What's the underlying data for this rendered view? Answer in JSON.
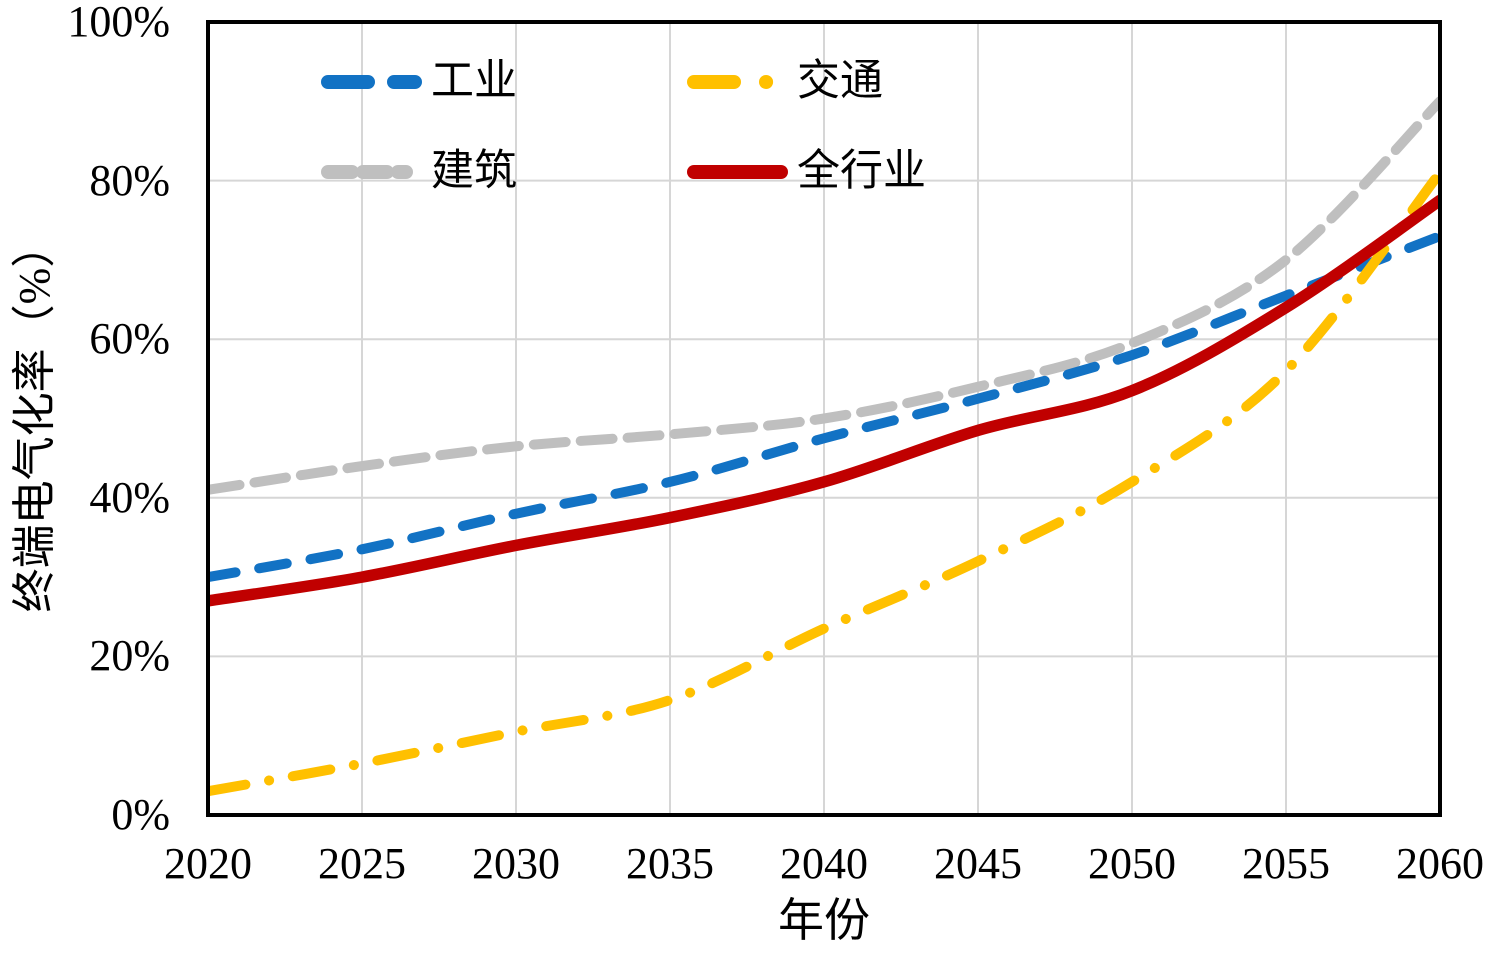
{
  "chart_data": {
    "type": "line",
    "title": "",
    "xlabel": "年份",
    "ylabel": "终端电气化率（%）",
    "x": [
      2020,
      2025,
      2030,
      2035,
      2040,
      2045,
      2050,
      2055,
      2060
    ],
    "x_tick_labels": [
      "2020",
      "2025",
      "2030",
      "2035",
      "2040",
      "2045",
      "2050",
      "2055",
      "2060"
    ],
    "y_tick_labels": [
      "0%",
      "20%",
      "40%",
      "60%",
      "80%",
      "100%"
    ],
    "ylim": [
      0,
      100
    ],
    "y_tick_step": 20,
    "xlim": [
      2020,
      2060
    ],
    "grid": true,
    "grid_color": "#D6D6D6",
    "border_color": "#000000",
    "background_color": "#FFFFFF",
    "legend_position": "top-left-inside",
    "series": [
      {
        "id": "industry",
        "name": "工业",
        "color": "#1272C4",
        "line_style": "dashed",
        "values": [
          30,
          33.5,
          38,
          42,
          47.5,
          52.5,
          58,
          65.5,
          73
        ]
      },
      {
        "id": "transport",
        "name": "交通",
        "color": "#FFC000",
        "line_style": "dash-dot",
        "values": [
          3,
          6.5,
          10.5,
          14.5,
          23.5,
          32,
          42,
          56,
          81
        ]
      },
      {
        "id": "buildings",
        "name": "建筑",
        "color": "#BFBFBF",
        "line_style": "dashed",
        "values": [
          41,
          44,
          46.5,
          48,
          50,
          54,
          59.5,
          70,
          90
        ]
      },
      {
        "id": "all-sectors",
        "name": "全行业",
        "color": "#C00000",
        "line_style": "solid",
        "values": [
          27,
          30,
          34,
          37.5,
          42,
          48.5,
          53.5,
          64,
          77.5
        ]
      }
    ]
  }
}
